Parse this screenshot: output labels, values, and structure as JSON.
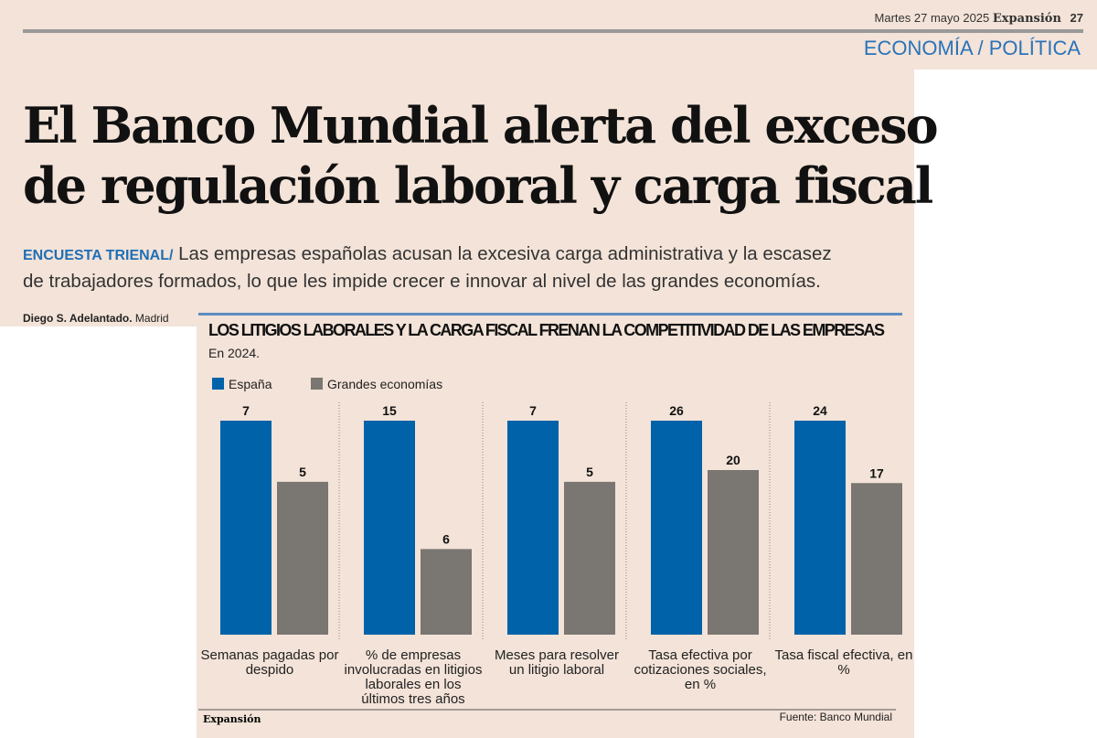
{
  "header": {
    "date": "Martes 27 mayo 2025",
    "brand": "Expansión",
    "page": "27",
    "section": "ECONOMÍA / POLÍTICA"
  },
  "article": {
    "headline_1": "El Banco Mundial alerta del exceso",
    "headline_2": "de regulación laboral y carga fiscal",
    "kicker": "ENCUESTA TRIENAL/",
    "lead": "Las empresas españolas acusan la excesiva carga administrativa y la escasez de trabajadores formados, lo que les impide crecer e innovar al nivel de las grandes economías.",
    "author": "Diego S. Adelantado.",
    "place": "Madrid"
  },
  "chart_data": {
    "type": "bar",
    "title": "LOS LITIGIOS LABORALES Y LA CARGA FISCAL FRENAN LA COMPETITIVIDAD DE LAS EMPRESAS",
    "subtitle": "En 2024.",
    "categories": [
      "Semanas pagadas por despido",
      "% de empresas involucradas en litigios laborales en los últimos tres años",
      "Meses para resolver un litigio laboral",
      "Tasa efectiva por cotizaciones sociales, en %",
      "Tasa fiscal efectiva, en %"
    ],
    "ylims": [
      [
        0,
        7
      ],
      [
        0,
        15
      ],
      [
        0,
        7
      ],
      [
        0,
        26
      ],
      [
        0,
        24
      ]
    ],
    "series": [
      {
        "name": "España",
        "color": "#0062a8",
        "values": [
          7,
          15,
          7,
          26,
          24
        ]
      },
      {
        "name": "Grandes economías",
        "color": "#7a7671",
        "values": [
          5,
          6,
          5,
          20,
          17
        ]
      }
    ],
    "brand": "Expansión",
    "source": "Fuente: Banco Mundial"
  }
}
